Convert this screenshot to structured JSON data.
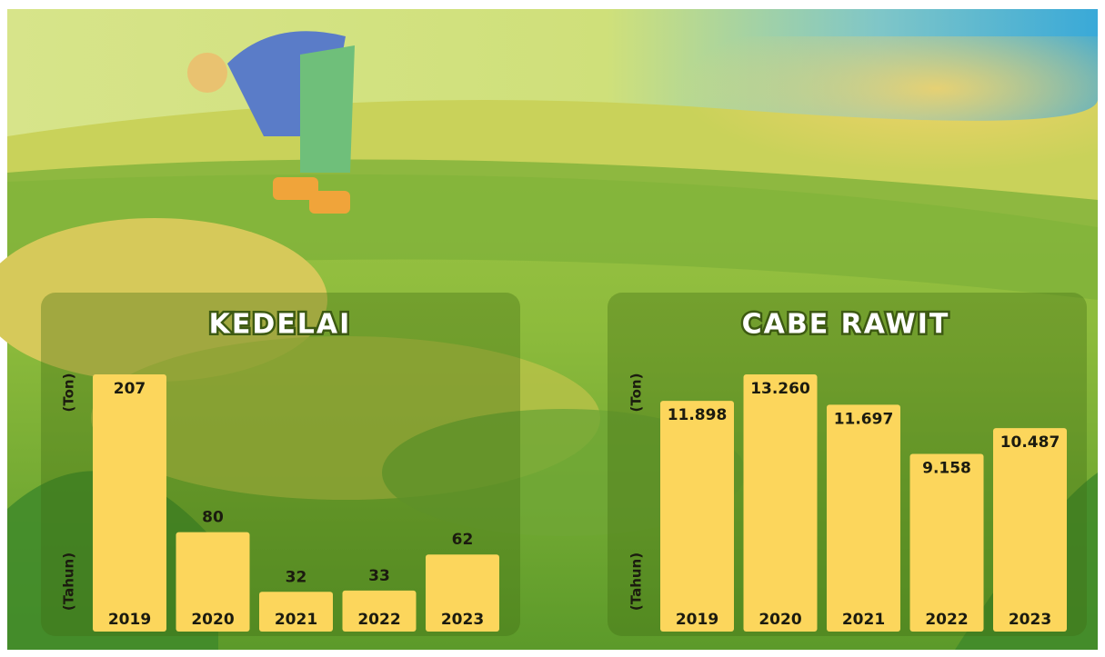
{
  "chart_data": [
    {
      "type": "bar",
      "title": "KEDELAI",
      "ylabel": "(Ton)",
      "xlabel": "(Tahun)",
      "categories": [
        "2019",
        "2020",
        "2021",
        "2022",
        "2023"
      ],
      "values": [
        207,
        80,
        32,
        33,
        62
      ],
      "color": "#fcd65c"
    },
    {
      "type": "bar",
      "title": "CABE RAWIT",
      "ylabel": "(Ton)",
      "xlabel": "(Tahun)",
      "categories": [
        "2019",
        "2020",
        "2021",
        "2022",
        "2023"
      ],
      "values": [
        11898,
        13260,
        11697,
        9158,
        10487
      ],
      "value_labels": [
        "11.898",
        "13.260",
        "11.697",
        "9.158",
        "10.487"
      ],
      "color": "#fcd65c"
    }
  ]
}
